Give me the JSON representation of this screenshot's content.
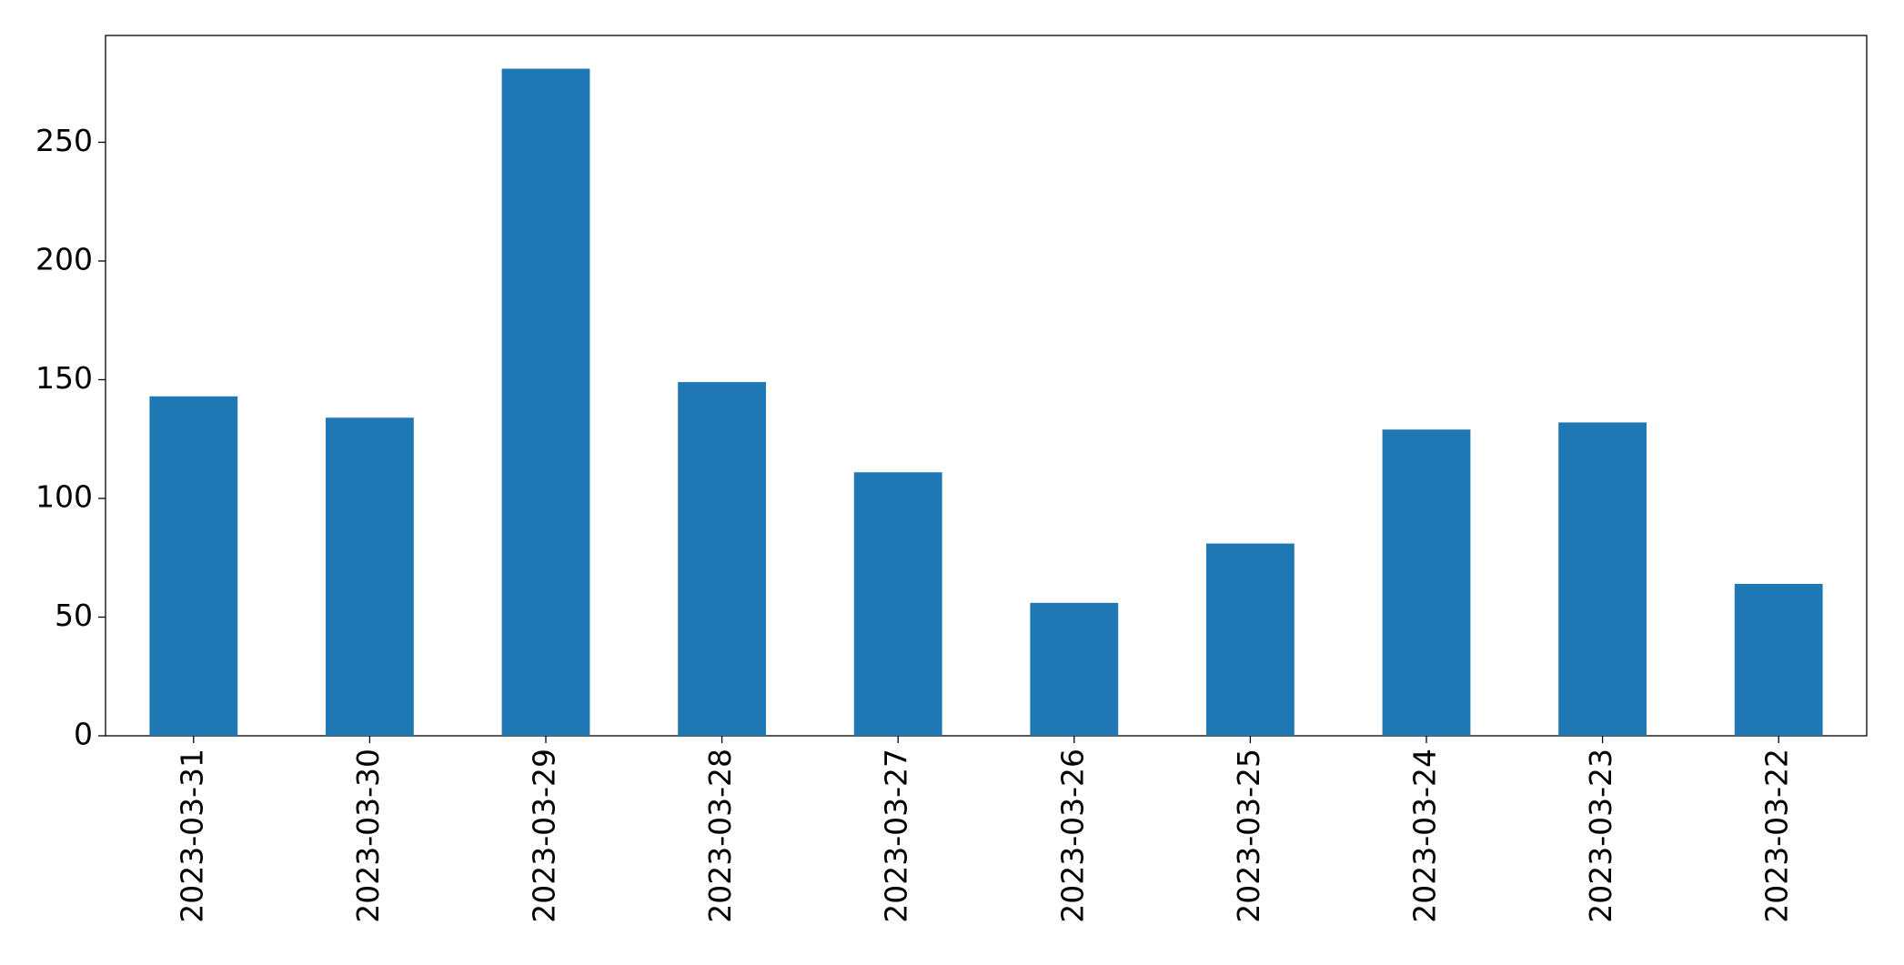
{
  "chart_data": {
    "type": "bar",
    "categories": [
      "2023-03-31",
      "2023-03-30",
      "2023-03-29",
      "2023-03-28",
      "2023-03-27",
      "2023-03-26",
      "2023-03-25",
      "2023-03-24",
      "2023-03-23",
      "2023-03-22"
    ],
    "values": [
      143,
      134,
      281,
      149,
      111,
      56,
      81,
      129,
      132,
      64
    ],
    "color": "#1f77b4",
    "ylim": [
      0,
      295
    ],
    "yticks": [
      0,
      50,
      100,
      150,
      200,
      250
    ],
    "grid": false
  }
}
